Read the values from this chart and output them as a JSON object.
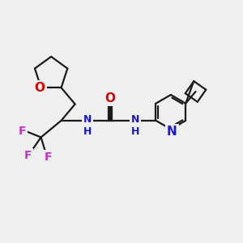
{
  "bg_color": "#efefef",
  "bond_color": "#1a1a1a",
  "bond_width": 1.6,
  "O_color": "#dd0000",
  "N_color": "#1a1acc",
  "F_color": "#cc33cc",
  "fig_size": [
    3.0,
    3.0
  ],
  "dpi": 100,
  "xlim": [
    0,
    10
  ],
  "ylim": [
    0,
    10
  ]
}
